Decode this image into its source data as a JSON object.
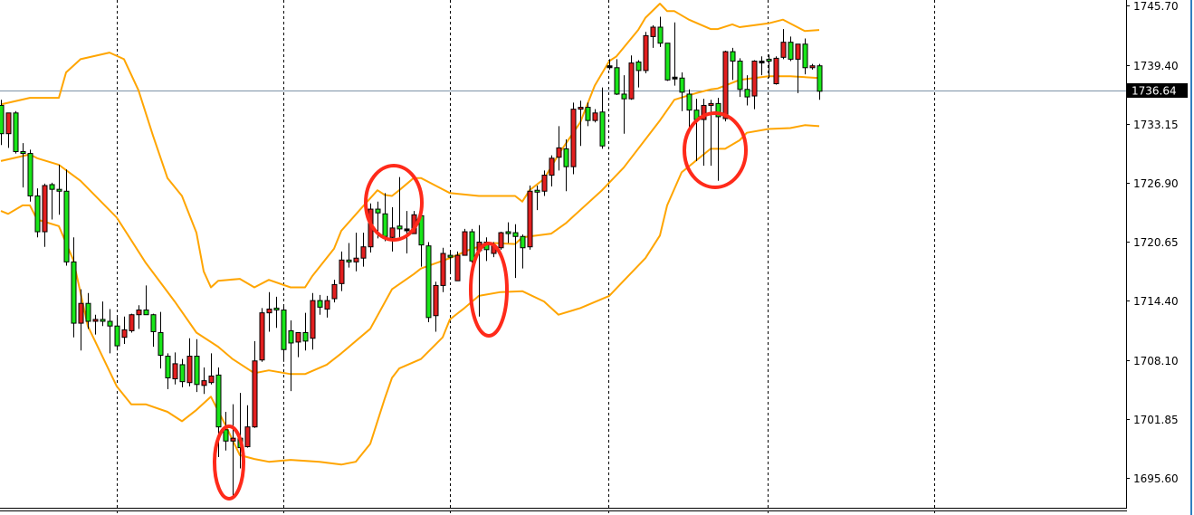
{
  "chart_data": {
    "type": "candlestick",
    "title": "",
    "xlabel": "",
    "ylabel": "",
    "ylim": [
      1692.9,
      1746.3
    ],
    "y_ticks": [
      "1745.70",
      "1739.40",
      "1733.15",
      "1726.90",
      "1720.65",
      "1714.40",
      "1708.10",
      "1701.85",
      "1695.60"
    ],
    "current_price": "1736.64",
    "grid": "vertical dashed lines",
    "colors": {
      "bull": "#e21f1f",
      "bear": "#19e619",
      "band": "#ffa500",
      "outline": "#000000",
      "price_line": "#7d93a8",
      "annotation": "#ff2a1a"
    },
    "candles_ohlc": [
      [
        1735.1,
        1735.7,
        1730.9,
        1732.1
      ],
      [
        1732.1,
        1734.3,
        1730.6,
        1734.3
      ],
      [
        1734.3,
        1734.5,
        1730.0,
        1730.2
      ],
      [
        1730.2,
        1731.1,
        1726.4,
        1730.0
      ],
      [
        1730.0,
        1730.4,
        1724.9,
        1725.5
      ],
      [
        1725.5,
        1726.3,
        1721.1,
        1721.7
      ],
      [
        1721.7,
        1726.8,
        1720.1,
        1726.6
      ],
      [
        1726.7,
        1726.9,
        1723.0,
        1726.2
      ],
      [
        1726.2,
        1728.8,
        1723.5,
        1726.0
      ],
      [
        1726.0,
        1728.3,
        1718.1,
        1718.5
      ],
      [
        1718.5,
        1721.1,
        1710.5,
        1712.0
      ],
      [
        1712.0,
        1715.6,
        1709.1,
        1714.1
      ],
      [
        1714.1,
        1715.2,
        1711.4,
        1712.2
      ],
      [
        1712.2,
        1712.9,
        1710.8,
        1712.4
      ],
      [
        1712.4,
        1714.3,
        1711.7,
        1712.2
      ],
      [
        1712.2,
        1713.5,
        1708.8,
        1711.7
      ],
      [
        1711.7,
        1712.7,
        1709.1,
        1709.6
      ],
      [
        1710.5,
        1712.7,
        1709.8,
        1711.3
      ],
      [
        1711.2,
        1713.0,
        1711.0,
        1712.9
      ],
      [
        1712.9,
        1713.9,
        1711.4,
        1713.4
      ],
      [
        1713.4,
        1716.0,
        1712.9,
        1712.9
      ],
      [
        1712.9,
        1713.0,
        1709.5,
        1711.1
      ],
      [
        1711.0,
        1713.2,
        1707.2,
        1708.6
      ],
      [
        1708.5,
        1708.8,
        1705.0,
        1706.2
      ],
      [
        1706.1,
        1708.9,
        1705.5,
        1707.7
      ],
      [
        1707.6,
        1708.2,
        1705.2,
        1705.8
      ],
      [
        1705.7,
        1710.4,
        1705.3,
        1708.5
      ],
      [
        1708.5,
        1710.3,
        1704.7,
        1705.5
      ],
      [
        1705.4,
        1707.3,
        1704.5,
        1705.9
      ],
      [
        1705.7,
        1708.8,
        1705.5,
        1706.4
      ],
      [
        1706.5,
        1707.3,
        1697.8,
        1701.0
      ],
      [
        1700.7,
        1702.6,
        1698.5,
        1699.5
      ],
      [
        1699.5,
        1703.4,
        1693.7,
        1699.8
      ],
      [
        1699.8,
        1704.6,
        1696.6,
        1698.8
      ],
      [
        1698.9,
        1703.3,
        1698.8,
        1701.0
      ],
      [
        1701.0,
        1710.1,
        1700.9,
        1708.0
      ],
      [
        1708.1,
        1713.6,
        1707.9,
        1713.1
      ],
      [
        1713.1,
        1715.3,
        1711.1,
        1713.5
      ],
      [
        1713.6,
        1714.8,
        1711.5,
        1713.4
      ],
      [
        1713.4,
        1713.8,
        1707.9,
        1709.2
      ],
      [
        1711.2,
        1712.3,
        1704.8,
        1709.9
      ],
      [
        1710.0,
        1711.0,
        1708.4,
        1711.0
      ],
      [
        1711.0,
        1713.1,
        1709.1,
        1710.1
      ],
      [
        1710.4,
        1715.2,
        1709.2,
        1714.4
      ],
      [
        1714.4,
        1715.0,
        1712.9,
        1713.7
      ],
      [
        1713.5,
        1714.9,
        1712.6,
        1714.4
      ],
      [
        1714.6,
        1716.6,
        1714.2,
        1716.1
      ],
      [
        1716.2,
        1719.6,
        1715.4,
        1718.7
      ],
      [
        1718.7,
        1720.5,
        1717.9,
        1718.5
      ],
      [
        1718.5,
        1721.6,
        1717.5,
        1718.9
      ],
      [
        1718.9,
        1721.6,
        1718.0,
        1720.1
      ],
      [
        1720.1,
        1724.7,
        1719.5,
        1724.1
      ],
      [
        1724.1,
        1724.9,
        1721.0,
        1723.7
      ],
      [
        1723.6,
        1725.8,
        1720.7,
        1721.2
      ],
      [
        1721.1,
        1724.3,
        1719.6,
        1722.1
      ],
      [
        1722.3,
        1727.5,
        1721.1,
        1722.0
      ],
      [
        1721.9,
        1723.9,
        1719.4,
        1721.9
      ],
      [
        1721.5,
        1723.9,
        1721.5,
        1723.5
      ],
      [
        1723.4,
        1723.9,
        1718.0,
        1720.3
      ],
      [
        1720.2,
        1720.6,
        1712.1,
        1712.6
      ],
      [
        1712.8,
        1716.4,
        1711.1,
        1716.0
      ],
      [
        1716.0,
        1720.0,
        1715.3,
        1719.4
      ],
      [
        1719.2,
        1719.7,
        1717.3,
        1719.0
      ],
      [
        1716.5,
        1719.6,
        1716.5,
        1719.2
      ],
      [
        1719.2,
        1722.0,
        1719.2,
        1721.7
      ],
      [
        1721.7,
        1722.0,
        1718.4,
        1718.6
      ],
      [
        1719.7,
        1722.4,
        1712.7,
        1720.6
      ],
      [
        1720.6,
        1721.1,
        1718.6,
        1719.8
      ],
      [
        1719.4,
        1720.6,
        1719.0,
        1720.2
      ],
      [
        1720.0,
        1721.7,
        1719.8,
        1721.6
      ],
      [
        1721.7,
        1722.7,
        1720.5,
        1721.5
      ],
      [
        1721.6,
        1722.5,
        1716.8,
        1721.2
      ],
      [
        1721.2,
        1721.4,
        1717.8,
        1720.0
      ],
      [
        1720.1,
        1726.6,
        1719.8,
        1726.0
      ],
      [
        1726.1,
        1726.6,
        1724.0,
        1725.9
      ],
      [
        1726.0,
        1728.2,
        1725.5,
        1727.7
      ],
      [
        1727.7,
        1729.8,
        1726.5,
        1729.5
      ],
      [
        1729.6,
        1732.9,
        1728.2,
        1730.6
      ],
      [
        1730.5,
        1731.5,
        1726.0,
        1728.6
      ],
      [
        1728.6,
        1735.4,
        1727.8,
        1734.7
      ],
      [
        1734.7,
        1735.6,
        1730.8,
        1734.9
      ],
      [
        1734.9,
        1735.4,
        1732.9,
        1733.5
      ],
      [
        1733.5,
        1734.7,
        1733.3,
        1734.3
      ],
      [
        1734.4,
        1737.0,
        1730.5,
        1730.8
      ],
      [
        1739.2,
        1740.0,
        1738.9,
        1739.2
      ],
      [
        1739.1,
        1740.0,
        1736.2,
        1736.3
      ],
      [
        1736.3,
        1738.3,
        1732.1,
        1735.8
      ],
      [
        1735.8,
        1740.4,
        1735.7,
        1739.6
      ],
      [
        1739.7,
        1739.9,
        1737.0,
        1738.8
      ],
      [
        1738.8,
        1742.9,
        1738.5,
        1742.5
      ],
      [
        1742.4,
        1743.6,
        1741.2,
        1743.4
      ],
      [
        1743.4,
        1744.5,
        1741.3,
        1741.7
      ],
      [
        1741.7,
        1741.7,
        1737.7,
        1737.8
      ],
      [
        1738.0,
        1743.9,
        1737.2,
        1738.0
      ],
      [
        1738.0,
        1738.6,
        1734.5,
        1736.5
      ],
      [
        1736.3,
        1736.8,
        1732.4,
        1734.6
      ],
      [
        1734.6,
        1735.8,
        1729.2,
        1733.6
      ],
      [
        1733.6,
        1735.8,
        1728.7,
        1735.1
      ],
      [
        1735.1,
        1735.7,
        1728.7,
        1735.3
      ],
      [
        1735.3,
        1735.9,
        1727.1,
        1733.9
      ],
      [
        1733.7,
        1740.9,
        1733.4,
        1740.8
      ],
      [
        1740.8,
        1741.2,
        1737.8,
        1739.8
      ],
      [
        1739.8,
        1740.1,
        1736.0,
        1736.8
      ],
      [
        1736.8,
        1738.3,
        1735.1,
        1736.0
      ],
      [
        1736.1,
        1739.9,
        1734.7,
        1739.8
      ],
      [
        1739.7,
        1740.3,
        1738.3,
        1739.7
      ],
      [
        1740.0,
        1740.5,
        1738.0,
        1739.8
      ],
      [
        1737.4,
        1740.3,
        1737.3,
        1740.1
      ],
      [
        1740.2,
        1743.2,
        1740.0,
        1741.8
      ],
      [
        1741.8,
        1742.4,
        1739.8,
        1740.0
      ],
      [
        1740.0,
        1741.6,
        1736.4,
        1741.6
      ],
      [
        1741.6,
        1742.2,
        1738.4,
        1739.1
      ],
      [
        1739.1,
        1739.5,
        1738.9,
        1739.3
      ],
      [
        1739.3,
        1739.5,
        1735.7,
        1736.6
      ]
    ],
    "bollinger_bands": {
      "upper": [
        [
          0,
          1735.2
        ],
        [
          4,
          1735.9
        ],
        [
          8,
          1735.9
        ],
        [
          9,
          1738.6
        ],
        [
          11,
          1740.0
        ],
        [
          15,
          1740.7
        ],
        [
          17,
          1740.0
        ],
        [
          19,
          1736.7
        ],
        [
          21,
          1731.9
        ],
        [
          23,
          1727.4
        ],
        [
          25,
          1725.5
        ],
        [
          27,
          1721.6
        ],
        [
          28,
          1717.5
        ],
        [
          29,
          1715.8
        ],
        [
          30,
          1716.5
        ],
        [
          33,
          1716.7
        ],
        [
          35,
          1715.8
        ],
        [
          37,
          1716.6
        ],
        [
          40,
          1715.8
        ],
        [
          42,
          1715.8
        ],
        [
          43,
          1717.0
        ],
        [
          46,
          1719.9
        ],
        [
          47,
          1721.8
        ],
        [
          50,
          1724.4
        ],
        [
          52,
          1726.1
        ],
        [
          53,
          1725.6
        ],
        [
          54,
          1725.5
        ],
        [
          55,
          1726.1
        ],
        [
          57,
          1727.4
        ],
        [
          58,
          1727.4
        ],
        [
          60,
          1726.6
        ],
        [
          62,
          1725.8
        ],
        [
          66,
          1725.5
        ],
        [
          71,
          1725.5
        ],
        [
          72,
          1724.9
        ],
        [
          73,
          1726.1
        ],
        [
          75,
          1727.3
        ],
        [
          77,
          1729.9
        ],
        [
          80,
          1733.3
        ],
        [
          82,
          1737.2
        ],
        [
          84,
          1739.8
        ],
        [
          85,
          1740.3
        ],
        [
          88,
          1743.1
        ],
        [
          89,
          1744.4
        ],
        [
          91,
          1745.9
        ],
        [
          92,
          1745.1
        ],
        [
          93,
          1745.1
        ],
        [
          95,
          1744.2
        ],
        [
          98,
          1743.2
        ],
        [
          99,
          1743.2
        ],
        [
          101,
          1743.7
        ],
        [
          102,
          1743.4
        ],
        [
          106,
          1743.8
        ],
        [
          108,
          1744.2
        ],
        [
          111,
          1743.0
        ],
        [
          113,
          1743.1
        ]
      ],
      "middle": [
        [
          0,
          1729.2
        ],
        [
          4,
          1729.9
        ],
        [
          5,
          1729.5
        ],
        [
          8,
          1728.8
        ],
        [
          11,
          1727.1
        ],
        [
          16,
          1723.2
        ],
        [
          20,
          1718.4
        ],
        [
          24,
          1714.3
        ],
        [
          27,
          1711.0
        ],
        [
          30,
          1709.5
        ],
        [
          32,
          1708.2
        ],
        [
          35,
          1706.7
        ],
        [
          37,
          1707.0
        ],
        [
          40,
          1706.6
        ],
        [
          42,
          1706.6
        ],
        [
          45,
          1707.6
        ],
        [
          47,
          1708.8
        ],
        [
          51,
          1711.4
        ],
        [
          54,
          1715.6
        ],
        [
          57,
          1717.2
        ],
        [
          58,
          1717.8
        ],
        [
          62,
          1718.9
        ],
        [
          65,
          1719.9
        ],
        [
          68,
          1720.5
        ],
        [
          71,
          1720.4
        ],
        [
          72,
          1721.1
        ],
        [
          76,
          1721.5
        ],
        [
          78,
          1722.6
        ],
        [
          83,
          1726.1
        ],
        [
          86,
          1728.5
        ],
        [
          91,
          1733.5
        ],
        [
          93,
          1735.7
        ],
        [
          96,
          1736.4
        ],
        [
          98,
          1736.8
        ],
        [
          99,
          1736.9
        ],
        [
          102,
          1737.8
        ],
        [
          106,
          1738.2
        ],
        [
          109,
          1738.2
        ],
        [
          113,
          1738.0
        ]
      ],
      "lower": [
        [
          0,
          1723.9
        ],
        [
          1,
          1723.6
        ],
        [
          3,
          1724.5
        ],
        [
          4,
          1724.5
        ],
        [
          5,
          1723.0
        ],
        [
          8,
          1722.3
        ],
        [
          10,
          1718.7
        ],
        [
          12,
          1711.7
        ],
        [
          16,
          1705.3
        ],
        [
          18,
          1703.4
        ],
        [
          20,
          1703.4
        ],
        [
          23,
          1702.6
        ],
        [
          25,
          1701.6
        ],
        [
          27,
          1702.8
        ],
        [
          29,
          1704.2
        ],
        [
          31,
          1701.2
        ],
        [
          33,
          1698.0
        ],
        [
          35,
          1697.6
        ],
        [
          37,
          1697.3
        ],
        [
          40,
          1697.5
        ],
        [
          44,
          1697.3
        ],
        [
          47,
          1697.0
        ],
        [
          49,
          1697.3
        ],
        [
          51,
          1699.2
        ],
        [
          53,
          1704.0
        ],
        [
          54,
          1706.2
        ],
        [
          55,
          1707.2
        ],
        [
          58,
          1708.2
        ],
        [
          61,
          1710.5
        ],
        [
          62,
          1712.4
        ],
        [
          64,
          1713.6
        ],
        [
          66,
          1714.9
        ],
        [
          69,
          1715.3
        ],
        [
          72,
          1715.4
        ],
        [
          75,
          1714.3
        ],
        [
          77,
          1712.9
        ],
        [
          80,
          1713.6
        ],
        [
          84,
          1714.9
        ],
        [
          86,
          1716.5
        ],
        [
          89,
          1718.9
        ],
        [
          91,
          1721.3
        ],
        [
          92,
          1724.5
        ],
        [
          94,
          1728.0
        ],
        [
          98,
          1730.5
        ],
        [
          100,
          1730.5
        ],
        [
          102,
          1731.4
        ],
        [
          103,
          1732.2
        ],
        [
          106,
          1732.6
        ],
        [
          109,
          1732.7
        ],
        [
          111,
          1733.0
        ],
        [
          113,
          1732.9
        ]
      ]
    }
  }
}
